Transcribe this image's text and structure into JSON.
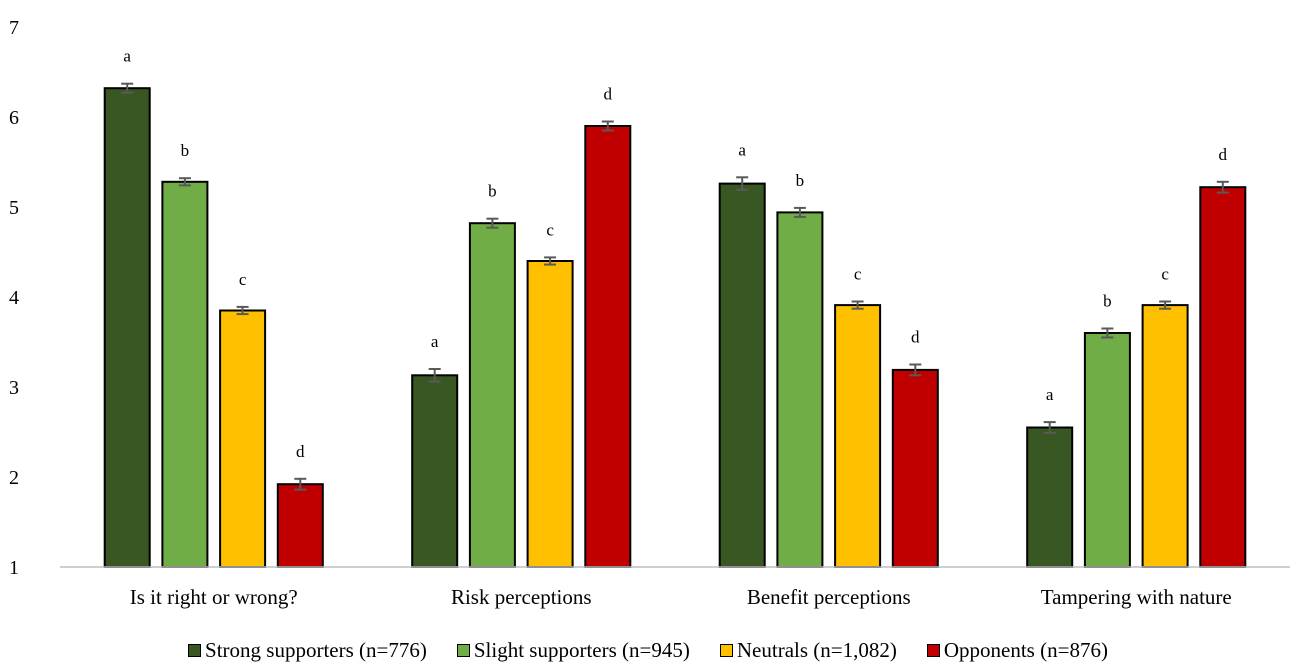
{
  "chart_data": {
    "type": "bar",
    "ylim": [
      1,
      7
    ],
    "yticks": [
      "1",
      "2",
      "3",
      "4",
      "5",
      "6",
      "7"
    ],
    "grid": false,
    "legend_position": "bottom",
    "categories": [
      "Is it right or wrong?",
      "Risk perceptions",
      "Benefit perceptions",
      "Tampering with nature"
    ],
    "series": [
      {
        "name": "Strong supporters (n=776)",
        "color": "#385723",
        "values": [
          6.32,
          3.13,
          5.26,
          2.55
        ],
        "errors": [
          0.05,
          0.07,
          0.07,
          0.06
        ],
        "sig": [
          "a",
          "a",
          "a",
          "a"
        ]
      },
      {
        "name": "Slight supporters (n=945)",
        "color": "#70ad47",
        "values": [
          5.28,
          4.82,
          4.94,
          3.6
        ],
        "errors": [
          0.04,
          0.05,
          0.05,
          0.05
        ],
        "sig": [
          "b",
          "b",
          "b",
          "b"
        ]
      },
      {
        "name": "Neutrals (n=1,082)",
        "color": "#ffc000",
        "values": [
          3.85,
          4.4,
          3.91,
          3.91
        ],
        "errors": [
          0.04,
          0.04,
          0.04,
          0.04
        ],
        "sig": [
          "c",
          "c",
          "c",
          "c"
        ]
      },
      {
        "name": "Opponents (n=876)",
        "color": "#c00000",
        "values": [
          1.92,
          5.9,
          3.19,
          5.22
        ],
        "errors": [
          0.06,
          0.05,
          0.06,
          0.06
        ],
        "sig": [
          "d",
          "d",
          "d",
          "d"
        ]
      }
    ]
  }
}
